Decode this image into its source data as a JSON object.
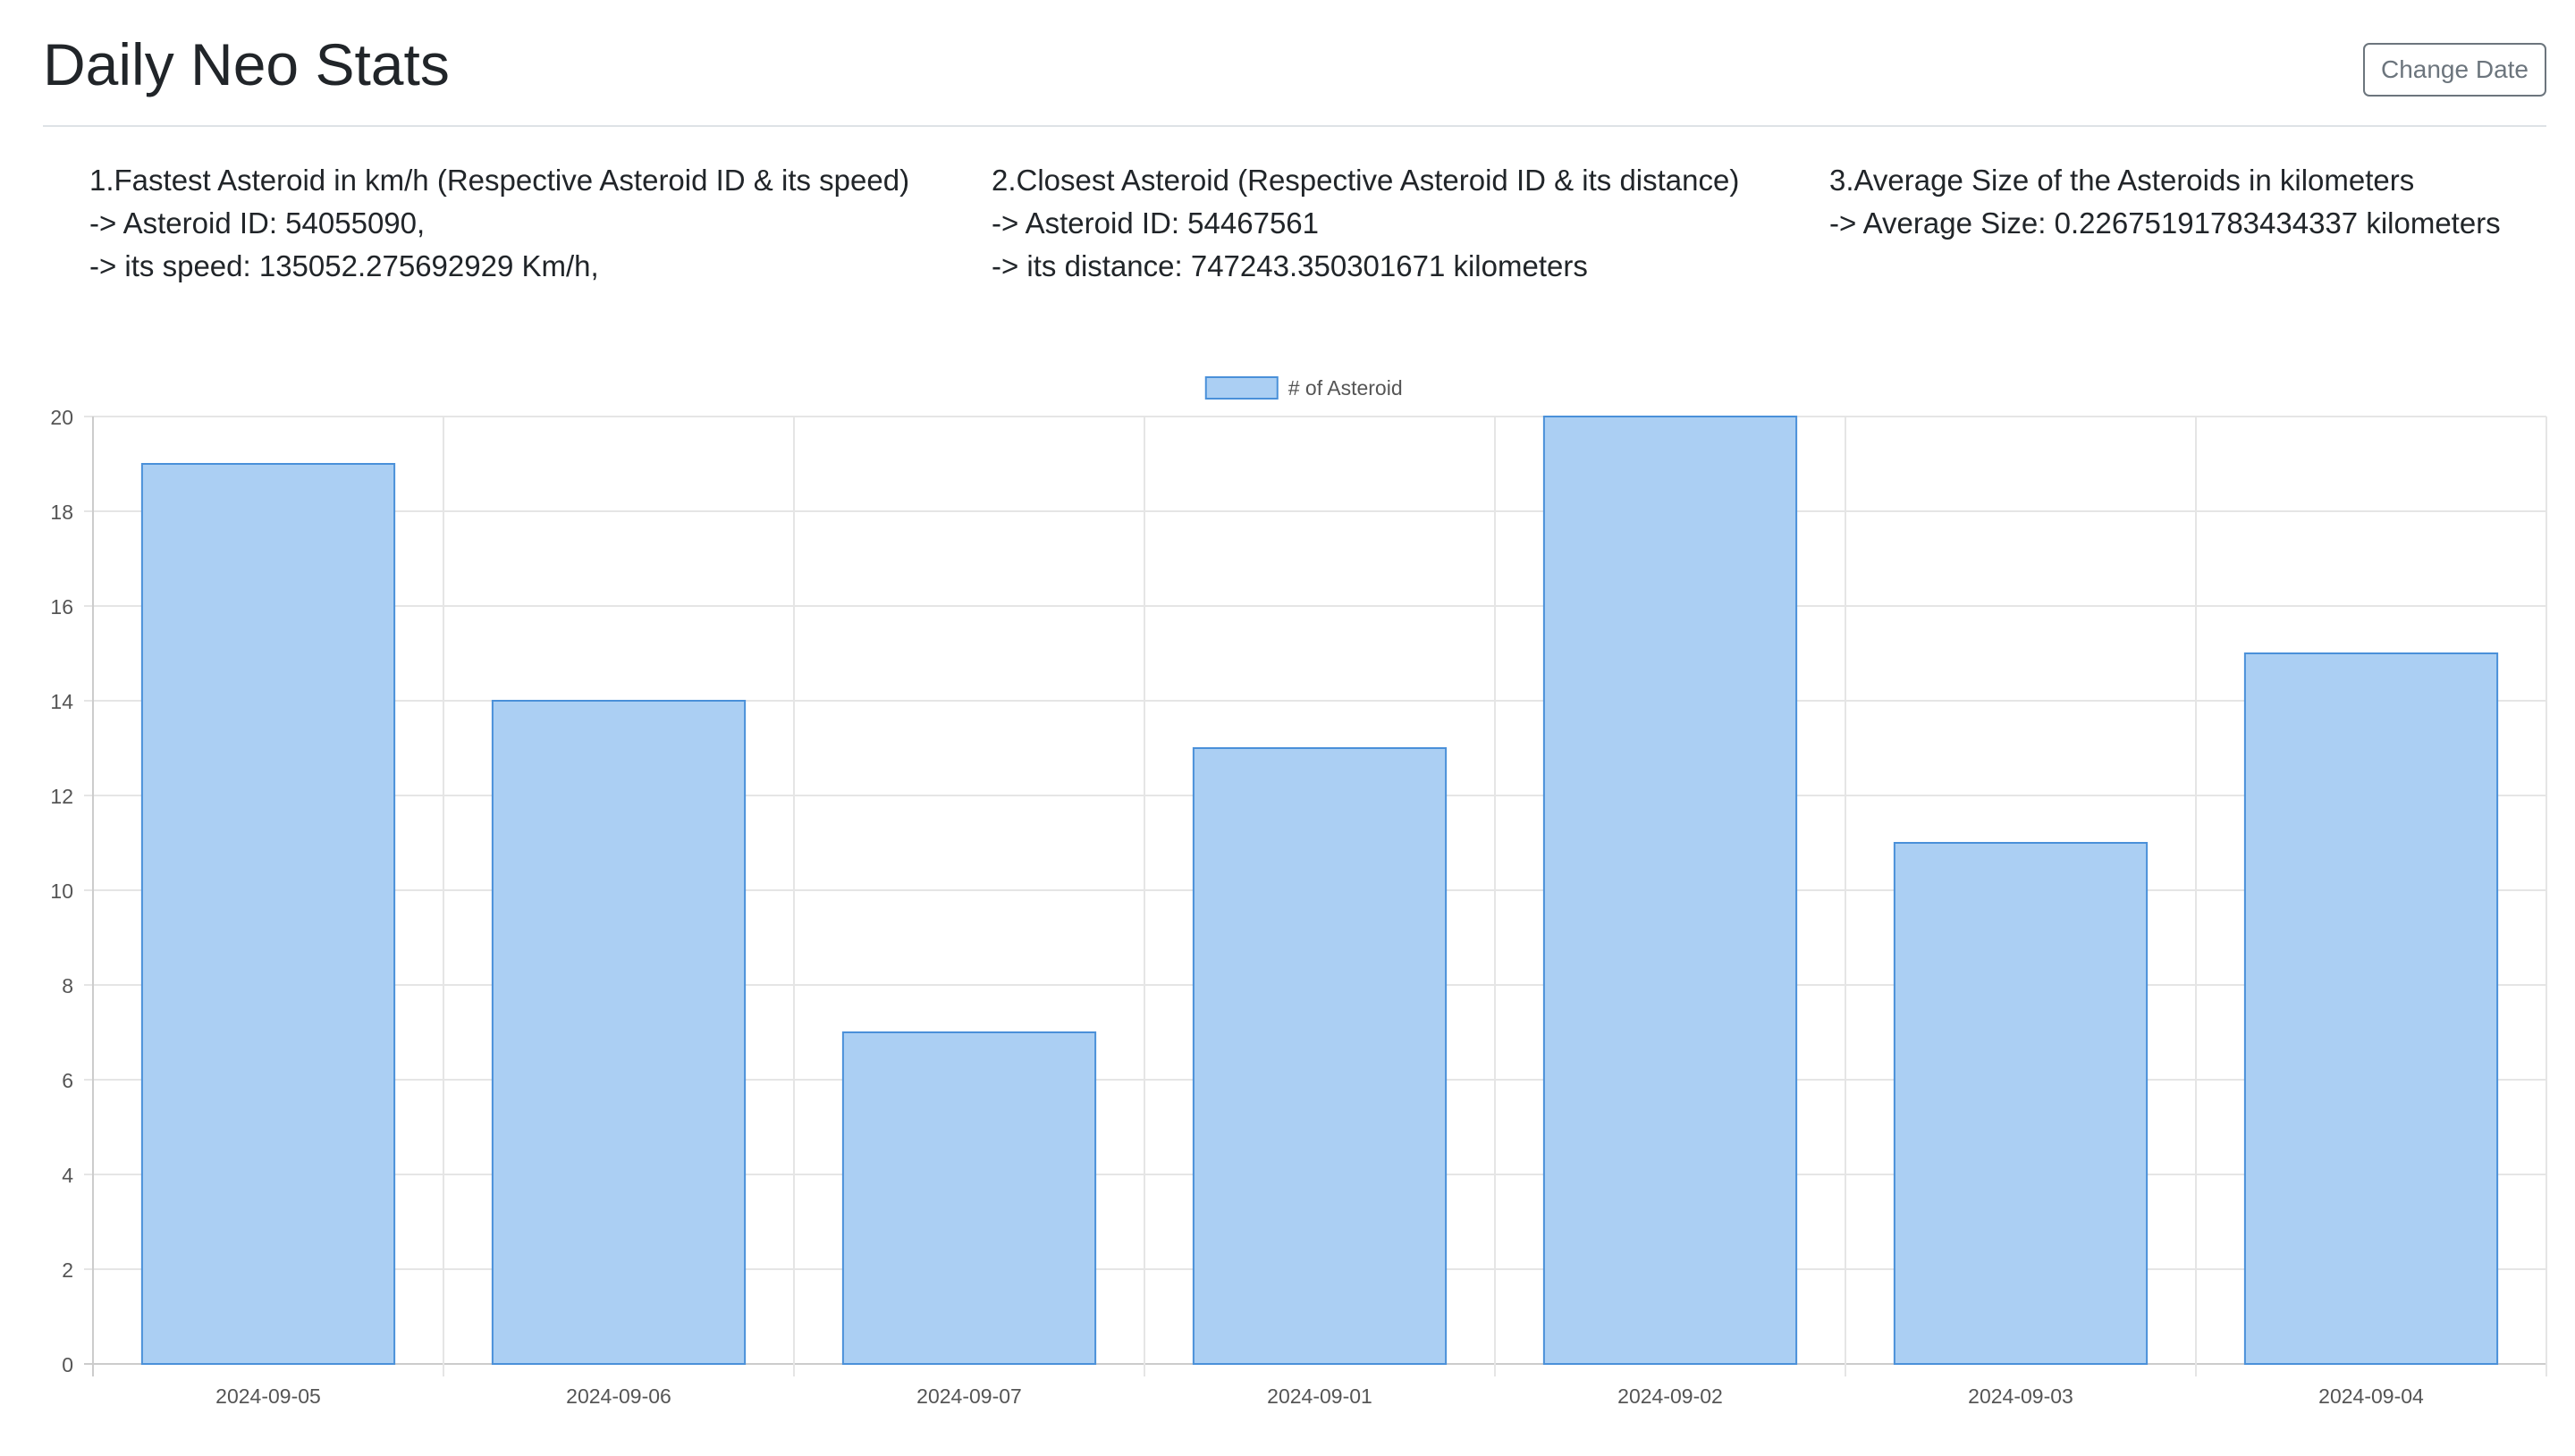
{
  "page": {
    "title": "Daily Neo Stats",
    "change_date_label": "Change Date"
  },
  "stats": {
    "fastest": {
      "heading": "1.Fastest Asteroid in km/h (Respective Asteroid ID & its speed)",
      "line1": "-> Asteroid ID: 54055090,",
      "line2": "-> its speed: 135052.275692929 Km/h,"
    },
    "closest": {
      "heading": "2.Closest Asteroid (Respective Asteroid ID & its distance)",
      "line1": "-> Asteroid ID: 54467561",
      "line2": "-> its distance: 747243.350301671 kilometers"
    },
    "average": {
      "heading": "3.Average Size of the Asteroids in kilometers",
      "line1": "-> Average Size: 0.22675191783434337 kilometers"
    }
  },
  "colors": {
    "bar_fill": "#abcff3",
    "bar_stroke": "#4a90d9",
    "grid": "#e5e5e5",
    "tick_text": "#555555"
  },
  "chart_data": {
    "type": "bar",
    "categories": [
      "2024-09-05",
      "2024-09-06",
      "2024-09-07",
      "2024-09-01",
      "2024-09-02",
      "2024-09-03",
      "2024-09-04"
    ],
    "series": [
      {
        "name": "# of Asteroid",
        "values": [
          19,
          14,
          7,
          13,
          20,
          11,
          15
        ]
      }
    ],
    "ylim": [
      0,
      20
    ],
    "yticks": [
      0,
      2,
      4,
      6,
      8,
      10,
      12,
      14,
      16,
      18,
      20
    ],
    "grid": true,
    "legend_position": "top-center"
  }
}
